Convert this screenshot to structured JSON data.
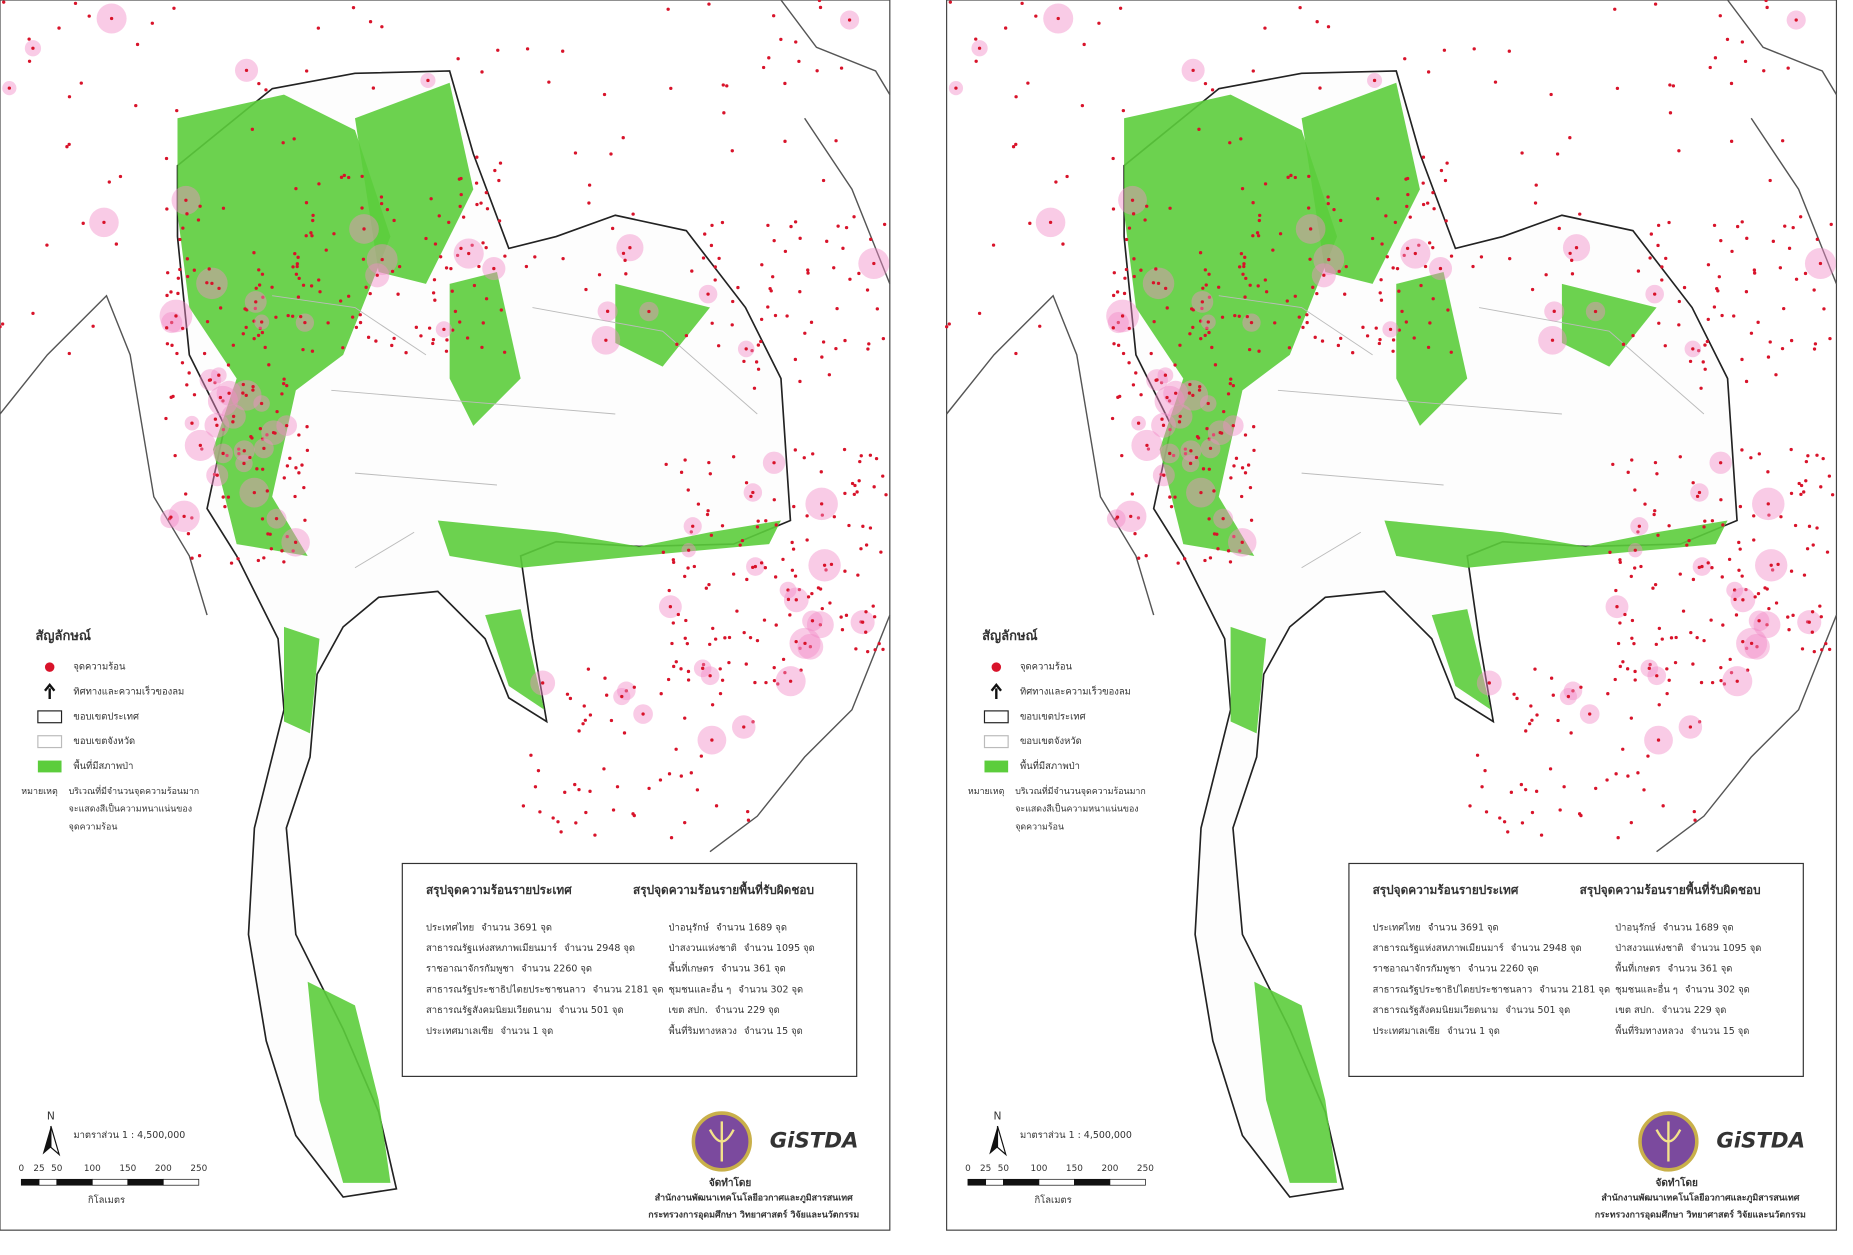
{
  "map": {
    "legend": {
      "title": "สัญลักษณ์",
      "items": [
        "จุดความร้อน",
        "ทิศทางและความเร็วของลม",
        "ขอบเขตประเทศ",
        "ขอบเขตจังหวัด",
        "พื้นที่มีสภาพป่า"
      ],
      "note_label": "หมายเหตุ",
      "note_lines": [
        "บริเวณที่มีจำนวนจุดความร้อนมาก",
        "จะแสดงสีเป็นความหนาแน่นของ",
        "จุดความร้อน"
      ]
    },
    "summary_country": {
      "title": "สรุปจุดความร้อนรายประเทศ",
      "rows": [
        {
          "name": "ประเทศไทย",
          "amount": "จำนวน 3691 จุด"
        },
        {
          "name": "สาธารณรัฐแห่งสหภาพเมียนมาร์",
          "amount": "จำนวน 2948 จุด"
        },
        {
          "name": "ราชอาณาจักรกัมพูชา",
          "amount": "จำนวน 2260 จุด"
        },
        {
          "name": "สาธารณรัฐประชาธิปไตยประชาชนลาว",
          "amount": "จำนวน 2181 จุด"
        },
        {
          "name": "สาธารณรัฐสังคมนิยมเวียดนาม",
          "amount": "จำนวน 501 จุด"
        },
        {
          "name": "ประเทศมาเลเซีย",
          "amount": "จำนวน 1 จุด"
        }
      ]
    },
    "summary_area": {
      "title": "สรุปจุดความร้อนรายพื้นที่รับผิดชอบ",
      "rows": [
        {
          "name": "ป่าอนุรักษ์",
          "amount": "จำนวน 1689 จุด"
        },
        {
          "name": "ป่าสงวนแห่งชาติ",
          "amount": "จำนวน 1095 จุด"
        },
        {
          "name": "พื้นที่เกษตร",
          "amount": "จำนวน 361 จุด"
        },
        {
          "name": "ชุมชนและอื่น ๆ",
          "amount": "จำนวน 302 จุด"
        },
        {
          "name": "เขต สปก.",
          "amount": "จำนวน 229 จุด"
        },
        {
          "name": "พื้นที่ริมทางหลวง",
          "amount": "จำนวน 15 จุด"
        }
      ]
    },
    "scale": {
      "north": "N",
      "label": "มาตราส่วน 1 : 4,500,000",
      "ticks": [
        0,
        25,
        50,
        100,
        150,
        200,
        250
      ],
      "unit": "กิโลเมตร"
    },
    "credit": {
      "by": "จัดทำโดย",
      "org": "สำนักงานพัฒนาเทคโนโลยีอวกาศและภูมิสารสนเทศ",
      "ministry": "กระทรวงการอุดมศึกษา วิทยาศาสตร์ วิจัยและนวัตกรรม",
      "logo_text": "GiSTDA"
    }
  }
}
